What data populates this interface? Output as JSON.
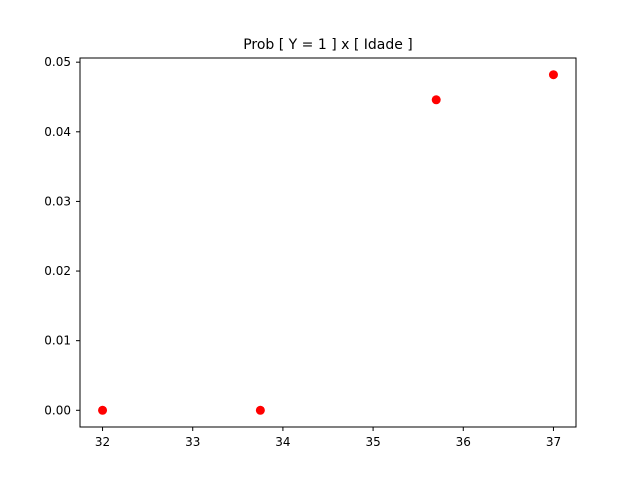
{
  "chart_data": {
    "type": "scatter",
    "title": "Prob [ Y = 1 ] x [ Idade ]",
    "xlabel": "",
    "ylabel": "",
    "x": [
      32,
      33.75,
      35.7,
      37
    ],
    "y": [
      0.0,
      0.0,
      0.0446,
      0.0482
    ],
    "xlim": [
      31.75,
      37.25
    ],
    "ylim": [
      -0.0024,
      0.0506
    ],
    "xticks": [
      32,
      33,
      34,
      35,
      36,
      37
    ],
    "xtick_labels": [
      "32",
      "33",
      "34",
      "35",
      "36",
      "37"
    ],
    "yticks": [
      0.0,
      0.01,
      0.02,
      0.03,
      0.04,
      0.05
    ],
    "ytick_labels": [
      "0.00",
      "0.01",
      "0.02",
      "0.03",
      "0.04",
      "0.05"
    ],
    "marker_color": "#ff0000",
    "grid": false,
    "legend": false
  }
}
